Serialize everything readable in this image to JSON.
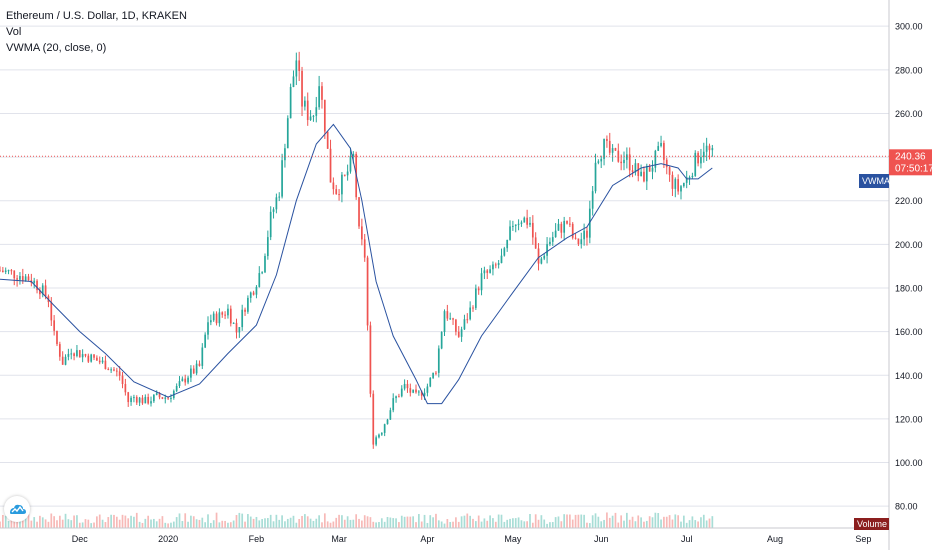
{
  "legend": {
    "symbol": "Ethereum / U.S. Dollar, 1D, KRAKEN",
    "volume": "Vol",
    "vwma": "VWMA (20, close, 0)"
  },
  "price_label": "240.36",
  "countdown_label": "07:50:17",
  "vwma_tag": "VWMA",
  "volume_tag": "Volume",
  "colors": {
    "up": "#26a69a",
    "down": "#ef5350",
    "vwma": "#2a52a0",
    "grid": "#e1e3eb",
    "price_line": "#ef5350",
    "axis_text": "#131722"
  },
  "chart_data": {
    "type": "candlestick",
    "x_range": [
      "2019-11-03",
      "2020-09-10"
    ],
    "y_range": [
      70,
      312
    ],
    "y_ticks": [
      80,
      100,
      120,
      140,
      160,
      180,
      200,
      220,
      240,
      260,
      280,
      300
    ],
    "y_tick_labels": [
      "80.00",
      "100.00",
      "120.00",
      "140.00",
      "160.00",
      "180.00",
      "200.00",
      "220.00",
      "240.00",
      "260.00",
      "280.00",
      "300.00"
    ],
    "x_ticks": [
      "2019-12-01",
      "2020-01-01",
      "2020-02-01",
      "2020-03-01",
      "2020-04-01",
      "2020-05-01",
      "2020-06-01",
      "2020-07-01",
      "2020-08-01",
      "2020-09-01"
    ],
    "x_tick_labels": [
      "Dec",
      "2020",
      "Feb",
      "Mar",
      "Apr",
      "May",
      "Jun",
      "Jul",
      "Aug",
      "Sep"
    ],
    "last_price": 240.36,
    "close_path": [
      [
        "2019-11-03",
        188
      ],
      [
        "2019-11-10",
        186
      ],
      [
        "2019-11-14",
        184
      ],
      [
        "2019-11-17",
        180
      ],
      [
        "2019-11-20",
        175
      ],
      [
        "2019-11-22",
        158
      ],
      [
        "2019-11-25",
        146
      ],
      [
        "2019-11-28",
        152
      ],
      [
        "2019-12-01",
        150
      ],
      [
        "2019-12-05",
        148
      ],
      [
        "2019-12-10",
        145
      ],
      [
        "2019-12-15",
        140
      ],
      [
        "2019-12-18",
        128
      ],
      [
        "2019-12-20",
        130
      ],
      [
        "2019-12-24",
        128
      ],
      [
        "2019-12-28",
        130
      ],
      [
        "2020-01-01",
        130
      ],
      [
        "2020-01-04",
        134
      ],
      [
        "2020-01-08",
        140
      ],
      [
        "2020-01-12",
        144
      ],
      [
        "2020-01-15",
        165
      ],
      [
        "2020-01-19",
        167
      ],
      [
        "2020-01-22",
        170
      ],
      [
        "2020-01-25",
        160
      ],
      [
        "2020-01-28",
        172
      ],
      [
        "2020-01-31",
        180
      ],
      [
        "2020-02-03",
        190
      ],
      [
        "2020-02-06",
        212
      ],
      [
        "2020-02-09",
        225
      ],
      [
        "2020-02-13",
        270
      ],
      [
        "2020-02-15",
        285
      ],
      [
        "2020-02-17",
        265
      ],
      [
        "2020-02-19",
        260
      ],
      [
        "2020-02-21",
        260
      ],
      [
        "2020-02-23",
        275
      ],
      [
        "2020-02-25",
        255
      ],
      [
        "2020-02-27",
        230
      ],
      [
        "2020-02-29",
        225
      ],
      [
        "2020-03-03",
        230
      ],
      [
        "2020-03-06",
        240
      ],
      [
        "2020-03-08",
        205
      ],
      [
        "2020-03-10",
        195
      ],
      [
        "2020-03-12",
        130
      ],
      [
        "2020-03-13",
        110
      ],
      [
        "2020-03-16",
        115
      ],
      [
        "2020-03-20",
        128
      ],
      [
        "2020-03-24",
        135
      ],
      [
        "2020-03-28",
        130
      ],
      [
        "2020-04-01",
        135
      ],
      [
        "2020-04-04",
        143
      ],
      [
        "2020-04-07",
        170
      ],
      [
        "2020-04-12",
        158
      ],
      [
        "2020-04-16",
        170
      ],
      [
        "2020-04-20",
        185
      ],
      [
        "2020-04-24",
        188
      ],
      [
        "2020-04-28",
        195
      ],
      [
        "2020-05-01",
        210
      ],
      [
        "2020-05-04",
        212
      ],
      [
        "2020-05-07",
        210
      ],
      [
        "2020-05-10",
        190
      ],
      [
        "2020-05-13",
        200
      ],
      [
        "2020-05-17",
        207
      ],
      [
        "2020-05-20",
        210
      ],
      [
        "2020-05-23",
        200
      ],
      [
        "2020-05-27",
        205
      ],
      [
        "2020-05-30",
        240
      ],
      [
        "2020-06-02",
        245
      ],
      [
        "2020-06-05",
        240
      ],
      [
        "2020-06-09",
        240
      ],
      [
        "2020-06-12",
        236
      ],
      [
        "2020-06-15",
        230
      ],
      [
        "2020-06-18",
        235
      ],
      [
        "2020-06-22",
        243
      ],
      [
        "2020-06-25",
        230
      ],
      [
        "2020-06-28",
        225
      ],
      [
        "2020-07-01",
        230
      ],
      [
        "2020-07-04",
        238
      ],
      [
        "2020-07-07",
        245
      ],
      [
        "2020-07-10",
        240.36
      ]
    ],
    "vwma_path": [
      [
        "2019-11-03",
        184
      ],
      [
        "2019-11-14",
        183
      ],
      [
        "2019-11-22",
        172
      ],
      [
        "2019-12-01",
        160
      ],
      [
        "2019-12-10",
        150
      ],
      [
        "2019-12-20",
        137
      ],
      [
        "2020-01-01",
        130
      ],
      [
        "2020-01-12",
        136
      ],
      [
        "2020-01-22",
        150
      ],
      [
        "2020-02-01",
        163
      ],
      [
        "2020-02-08",
        186
      ],
      [
        "2020-02-15",
        220
      ],
      [
        "2020-02-22",
        246
      ],
      [
        "2020-02-28",
        255
      ],
      [
        "2020-03-05",
        244
      ],
      [
        "2020-03-09",
        220
      ],
      [
        "2020-03-14",
        183
      ],
      [
        "2020-03-20",
        158
      ],
      [
        "2020-03-28",
        138
      ],
      [
        "2020-04-01",
        127
      ],
      [
        "2020-04-06",
        127
      ],
      [
        "2020-04-12",
        138
      ],
      [
        "2020-04-20",
        158
      ],
      [
        "2020-05-01",
        178
      ],
      [
        "2020-05-10",
        194
      ],
      [
        "2020-05-20",
        203
      ],
      [
        "2020-05-27",
        208
      ],
      [
        "2020-06-05",
        227
      ],
      [
        "2020-06-15",
        235
      ],
      [
        "2020-06-22",
        237
      ],
      [
        "2020-06-28",
        235
      ],
      [
        "2020-07-01",
        230
      ],
      [
        "2020-07-05",
        230
      ],
      [
        "2020-07-10",
        235
      ]
    ]
  }
}
